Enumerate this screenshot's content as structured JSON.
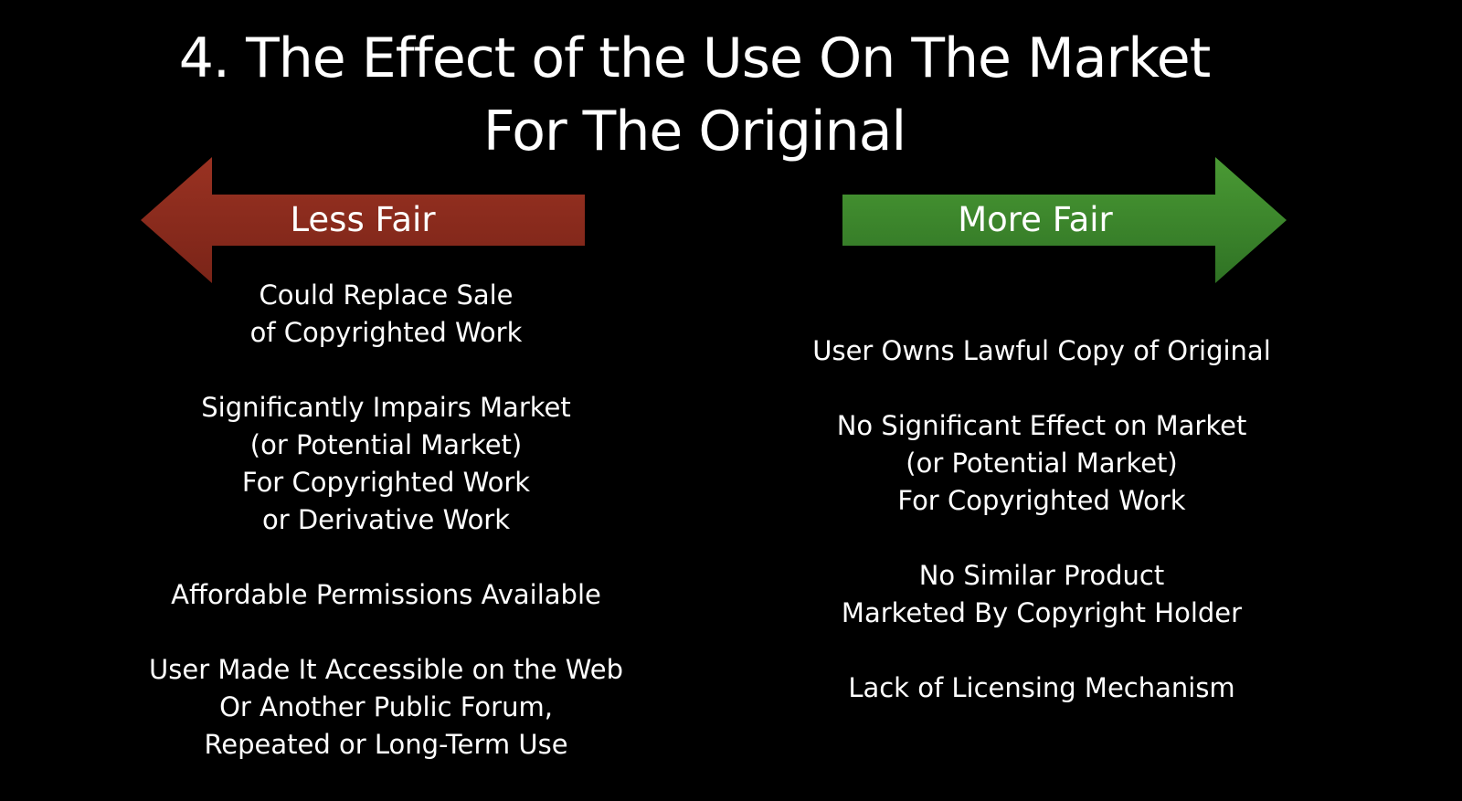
{
  "slide": {
    "title_lines": [
      "4. The Effect of the Use On The Market",
      "For The Original"
    ],
    "left_arrow": {
      "label": "Less Fair",
      "color": "#8B2A1E"
    },
    "right_arrow": {
      "label": "More Fair",
      "color": "#3E8E2C"
    },
    "left_items": [
      [
        "Could Replace Sale",
        "of Copyrighted Work"
      ],
      [
        "Significantly Impairs Market",
        "(or Potential Market)",
        "For Copyrighted Work",
        "or Derivative Work"
      ],
      [
        "Affordable Permissions Available"
      ],
      [
        "User Made It Accessible on the Web",
        "Or Another Public Forum,",
        "Repeated or Long-Term Use"
      ]
    ],
    "right_items": [
      [
        "User Owns Lawful Copy of Original"
      ],
      [
        "No Significant Effect on Market",
        "(or Potential Market)",
        "For Copyrighted Work"
      ],
      [
        "No Similar Product",
        "Marketed By Copyright Holder"
      ],
      [
        "Lack of Licensing Mechanism"
      ]
    ]
  }
}
